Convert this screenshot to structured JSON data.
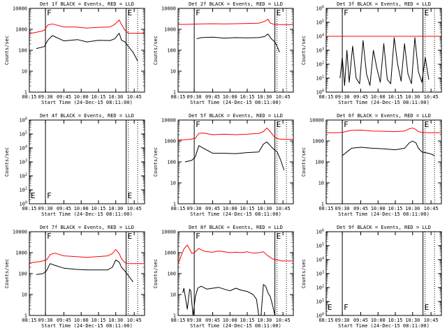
{
  "colors": {
    "events": "#000000",
    "lld": "#ff0000",
    "axis": "#000000"
  },
  "chart_data": [
    {
      "type": "line",
      "title": "Det 1f BLACK = Events, RED = LLD",
      "xlabel": "Start Time (24-Dec-15 08:11:00)",
      "ylabel": "Counts/sec",
      "log_y": true,
      "ylim": [
        1,
        10000
      ],
      "yticks": [
        "1",
        "10",
        "100",
        "1000",
        "10000"
      ],
      "xticks": [
        "08:15",
        "09:30",
        "09:45",
        "10:00",
        "10:15",
        "10:30",
        "10:45"
      ],
      "markers": [
        {
          "label": "F"
        },
        {
          "label": "E"
        }
      ],
      "series": [
        {
          "name": "Events",
          "color": "black",
          "x": [
            0.06,
            0.13,
            0.16,
            0.2,
            0.3,
            0.42,
            0.5,
            0.6,
            0.7,
            0.74,
            0.78,
            0.8,
            0.83,
            0.86,
            0.9,
            0.92,
            0.94
          ],
          "y": [
            120,
            150,
            300,
            500,
            280,
            320,
            250,
            300,
            290,
            350,
            650,
            300,
            250,
            150,
            80,
            50,
            30
          ]
        },
        {
          "name": "LLD",
          "color": "red",
          "x": [
            0,
            0.1,
            0.13,
            0.16,
            0.2,
            0.3,
            0.4,
            0.5,
            0.6,
            0.7,
            0.74,
            0.78,
            0.8,
            0.83,
            0.86,
            0.9,
            1.0
          ],
          "y": [
            620,
            800,
            900,
            1600,
            1800,
            1300,
            1300,
            1150,
            1250,
            1300,
            1700,
            2800,
            1700,
            900,
            650,
            650,
            650
          ]
        }
      ]
    },
    {
      "type": "line",
      "title": "Det 2f BLACK = Events, RED = LLD",
      "xlabel": "Start Time (24-Dec-15 08:11:00)",
      "ylabel": "Counts/sec",
      "log_y": true,
      "ylim": [
        1,
        10000
      ],
      "yticks": [
        "1",
        "10",
        "100",
        "1000",
        "10000"
      ],
      "xticks": [
        "08:15",
        "09:30",
        "09:45",
        "10:00",
        "10:15",
        "10:30",
        "10:45"
      ],
      "markers": [
        {
          "label": "F"
        },
        {
          "label": "E"
        }
      ],
      "series": [
        {
          "name": "Events",
          "color": "black",
          "x": [
            0.16,
            0.2,
            0.3,
            0.4,
            0.5,
            0.6,
            0.7,
            0.75,
            0.78,
            0.81,
            0.84,
            0.86,
            0.88
          ],
          "y": [
            350,
            400,
            420,
            380,
            400,
            390,
            400,
            450,
            600,
            350,
            250,
            150,
            80
          ]
        },
        {
          "name": "LLD",
          "color": "red",
          "x": [
            0,
            0.1,
            0.2,
            0.3,
            0.4,
            0.5,
            0.6,
            0.7,
            0.75,
            0.78,
            0.8,
            0.83,
            0.86,
            1.0
          ],
          "y": [
            1700,
            1750,
            1800,
            1850,
            1800,
            1850,
            1900,
            1950,
            2400,
            3000,
            2000,
            1750,
            1700,
            1650
          ]
        }
      ]
    },
    {
      "type": "line",
      "title": "Det 3f BLACK = Events, RED = LLD",
      "xlabel": "Start Time (24-Dec-15 08:11:00)",
      "ylabel": "Counts/sec",
      "log_y": true,
      "ylim": [
        1,
        1000000
      ],
      "yticks": [
        "10^0",
        "10^1",
        "10^2",
        "10^3",
        "10^4",
        "10^5",
        "10^6"
      ],
      "xticks": [
        "08:15",
        "09:30",
        "09:45",
        "10:00",
        "10:15",
        "10:30",
        "10:45"
      ],
      "markers": [
        {
          "label": "F"
        },
        {
          "label": "E"
        }
      ],
      "series": [
        {
          "name": "Events",
          "color": "black",
          "style": "bursty",
          "x": [
            0.12,
            0.14,
            0.16,
            0.18,
            0.2,
            0.23,
            0.26,
            0.29,
            0.32,
            0.35,
            0.38,
            0.41,
            0.44,
            0.47,
            0.5,
            0.53,
            0.56,
            0.59,
            0.62,
            0.65,
            0.68,
            0.71,
            0.74,
            0.77,
            0.8,
            0.83,
            0.86,
            0.89
          ],
          "y": [
            10,
            300,
            3,
            1000,
            5,
            2000,
            10,
            4,
            5000,
            20,
            3,
            1000,
            50,
            5,
            3000,
            8,
            4,
            8000,
            100,
            6,
            3000,
            20,
            4,
            8000,
            30,
            5,
            300,
            8
          ]
        },
        {
          "name": "LLD",
          "color": "red",
          "x": [
            0,
            1
          ],
          "y": [
            10000,
            10000
          ]
        }
      ]
    },
    {
      "type": "line",
      "title": "Det 4f BLACK = Events, RED = LLD",
      "xlabel": "Start Time (24-Dec-15 08:11:00)",
      "ylabel": "Counts/sec",
      "log_y": true,
      "ylim": [
        1,
        1000000
      ],
      "yticks": [
        "10^0",
        "10^1",
        "10^2",
        "10^3",
        "10^4",
        "10^5",
        "10^6"
      ],
      "xticks": [
        "08:15",
        "09:30",
        "09:45",
        "10:00",
        "10:15",
        "10:30",
        "10:45"
      ],
      "markers": [
        {
          "label": "F"
        },
        {
          "label": "E"
        }
      ],
      "corner_label": "E",
      "series": []
    },
    {
      "type": "line",
      "title": "Det 5f BLACK = Events, RED = LLD",
      "xlabel": "Start Time (24-Dec-15 08:11:00)",
      "ylabel": "Counts/sec",
      "log_y": true,
      "ylim": [
        1,
        10000
      ],
      "yticks": [
        "1",
        "10",
        "100",
        "1000",
        "10000"
      ],
      "xticks": [
        "08:15",
        "09:30",
        "09:45",
        "10:00",
        "10:15",
        "10:30",
        "10:45"
      ],
      "markers": [
        {
          "label": "F"
        },
        {
          "label": "E"
        }
      ],
      "series": [
        {
          "name": "Events",
          "color": "black",
          "x": [
            0.06,
            0.12,
            0.15,
            0.18,
            0.22,
            0.3,
            0.4,
            0.5,
            0.6,
            0.7,
            0.74,
            0.77,
            0.8,
            0.83,
            0.86,
            0.89,
            0.92
          ],
          "y": [
            100,
            120,
            180,
            600,
            450,
            260,
            260,
            250,
            280,
            300,
            700,
            900,
            600,
            400,
            300,
            120,
            40
          ]
        },
        {
          "name": "LLD",
          "color": "red",
          "x": [
            0,
            0.1,
            0.15,
            0.18,
            0.22,
            0.3,
            0.4,
            0.5,
            0.6,
            0.7,
            0.74,
            0.77,
            0.8,
            0.83,
            0.86,
            0.9,
            1.0
          ],
          "y": [
            1100,
            1200,
            1350,
            2300,
            2400,
            2000,
            2100,
            2000,
            2100,
            2300,
            2800,
            4200,
            2800,
            1700,
            1300,
            1200,
            1200
          ]
        }
      ]
    },
    {
      "type": "line",
      "title": "Det 6f BLACK = Events, RED = LLD",
      "xlabel": "Start Time (24-Dec-15 08:11:00)",
      "ylabel": "Counts/sec",
      "log_y": true,
      "ylim": [
        1,
        10000
      ],
      "yticks": [
        "1",
        "10",
        "100",
        "1000",
        "10000"
      ],
      "xticks": [
        "08:15",
        "09:30",
        "09:45",
        "10:00",
        "10:15",
        "10:30",
        "10:45"
      ],
      "markers": [
        {
          "label": "F"
        },
        {
          "label": "E"
        }
      ],
      "series": [
        {
          "name": "Events",
          "color": "black",
          "x": [
            0.14,
            0.18,
            0.22,
            0.3,
            0.4,
            0.5,
            0.6,
            0.68,
            0.72,
            0.75,
            0.78,
            0.8,
            0.83,
            0.86,
            0.9,
            0.94
          ],
          "y": [
            200,
            300,
            450,
            500,
            450,
            420,
            380,
            450,
            800,
            1000,
            800,
            450,
            300,
            280,
            250,
            200
          ]
        },
        {
          "name": "LLD",
          "color": "red",
          "x": [
            0,
            0.1,
            0.14,
            0.18,
            0.22,
            0.3,
            0.4,
            0.5,
            0.6,
            0.68,
            0.72,
            0.75,
            0.78,
            0.8,
            0.83,
            0.86,
            1.0
          ],
          "y": [
            2500,
            2500,
            2600,
            2900,
            3200,
            3300,
            3000,
            2900,
            2800,
            3000,
            3800,
            4200,
            3500,
            2800,
            2600,
            2500,
            2500
          ]
        }
      ]
    },
    {
      "type": "line",
      "title": "Det 7f BLACK = Events, RED = LLD",
      "xlabel": "Start Time (24-Dec-15 08:11:00)",
      "ylabel": "Counts/sec",
      "log_y": true,
      "ylim": [
        1,
        10000
      ],
      "yticks": [
        "1",
        "10",
        "100",
        "1000",
        "10000"
      ],
      "xticks": [
        "08:15",
        "09:30",
        "09:45",
        "10:00",
        "10:15",
        "10:30",
        "10:45"
      ],
      "markers": [
        {
          "label": "F"
        },
        {
          "label": "E"
        }
      ],
      "series": [
        {
          "name": "Events",
          "color": "black",
          "x": [
            0.06,
            0.12,
            0.15,
            0.18,
            0.22,
            0.3,
            0.4,
            0.5,
            0.6,
            0.68,
            0.72,
            0.75,
            0.78,
            0.8,
            0.83,
            0.86,
            0.9
          ],
          "y": [
            90,
            100,
            140,
            300,
            250,
            180,
            160,
            150,
            150,
            150,
            200,
            450,
            350,
            200,
            130,
            80,
            40
          ]
        },
        {
          "name": "LLD",
          "color": "red",
          "x": [
            0,
            0.1,
            0.15,
            0.18,
            0.22,
            0.3,
            0.4,
            0.5,
            0.6,
            0.68,
            0.72,
            0.75,
            0.78,
            0.8,
            0.83,
            0.86,
            1.0
          ],
          "y": [
            320,
            380,
            450,
            800,
            950,
            700,
            650,
            600,
            650,
            700,
            900,
            1400,
            900,
            500,
            330,
            300,
            300
          ]
        }
      ]
    },
    {
      "type": "line",
      "title": "Det 8f BLACK = Events, RED = LLD",
      "xlabel": "Start Time (24-Dec-15 08:11:00)",
      "ylabel": "Counts/sec",
      "log_y": true,
      "ylim": [
        1,
        10000
      ],
      "yticks": [
        "1",
        "10",
        "100",
        "1000",
        "10000"
      ],
      "xticks": [
        "08:15",
        "09:30",
        "09:45",
        "10:00",
        "10:15",
        "10:30",
        "10:45"
      ],
      "markers": [
        {
          "label": "F"
        },
        {
          "label": "E"
        }
      ],
      "series": [
        {
          "name": "Events",
          "color": "black",
          "x": [
            0.04,
            0.05,
            0.08,
            0.1,
            0.11,
            0.13,
            0.15,
            0.17,
            0.2,
            0.25,
            0.3,
            0.35,
            0.4,
            0.45,
            0.5,
            0.55,
            0.6,
            0.65,
            0.68,
            0.7,
            0.72,
            0.74,
            0.76,
            0.78,
            0.8,
            0.82,
            0.84
          ],
          "y": [
            12,
            20,
            2,
            18,
            15,
            1,
            8,
            20,
            25,
            18,
            20,
            22,
            18,
            15,
            20,
            16,
            14,
            10,
            6,
            1,
            1,
            30,
            25,
            12,
            8,
            3,
            1
          ]
        },
        {
          "name": "LLD",
          "color": "red",
          "x": [
            0,
            0.05,
            0.08,
            0.12,
            0.14,
            0.18,
            0.22,
            0.26,
            0.3,
            0.35,
            0.4,
            0.45,
            0.5,
            0.55,
            0.6,
            0.65,
            0.7,
            0.74,
            0.78,
            0.82,
            0.86,
            0.9,
            0.95,
            1.0
          ],
          "y": [
            300,
            1500,
            2300,
            900,
            1000,
            1600,
            1200,
            1100,
            1050,
            1200,
            1100,
            1000,
            1050,
            1000,
            1100,
            950,
            1000,
            1100,
            700,
            500,
            450,
            400,
            400,
            400
          ]
        }
      ]
    },
    {
      "type": "line",
      "title": "Det 9f BLACK = Events, RED = LLD",
      "xlabel": "Start Time (24-Dec-15 08:11:00)",
      "ylabel": "Counts/sec",
      "log_y": true,
      "ylim": [
        1,
        1000000
      ],
      "yticks": [
        "10^0",
        "10^1",
        "10^2",
        "10^3",
        "10^4",
        "10^5",
        "10^6"
      ],
      "xticks": [
        "08:15",
        "09:30",
        "09:45",
        "10:00",
        "10:15",
        "10:30",
        "10:45"
      ],
      "markers": [
        {
          "label": "F"
        },
        {
          "label": "E"
        }
      ],
      "corner_label": "E",
      "series": []
    }
  ]
}
